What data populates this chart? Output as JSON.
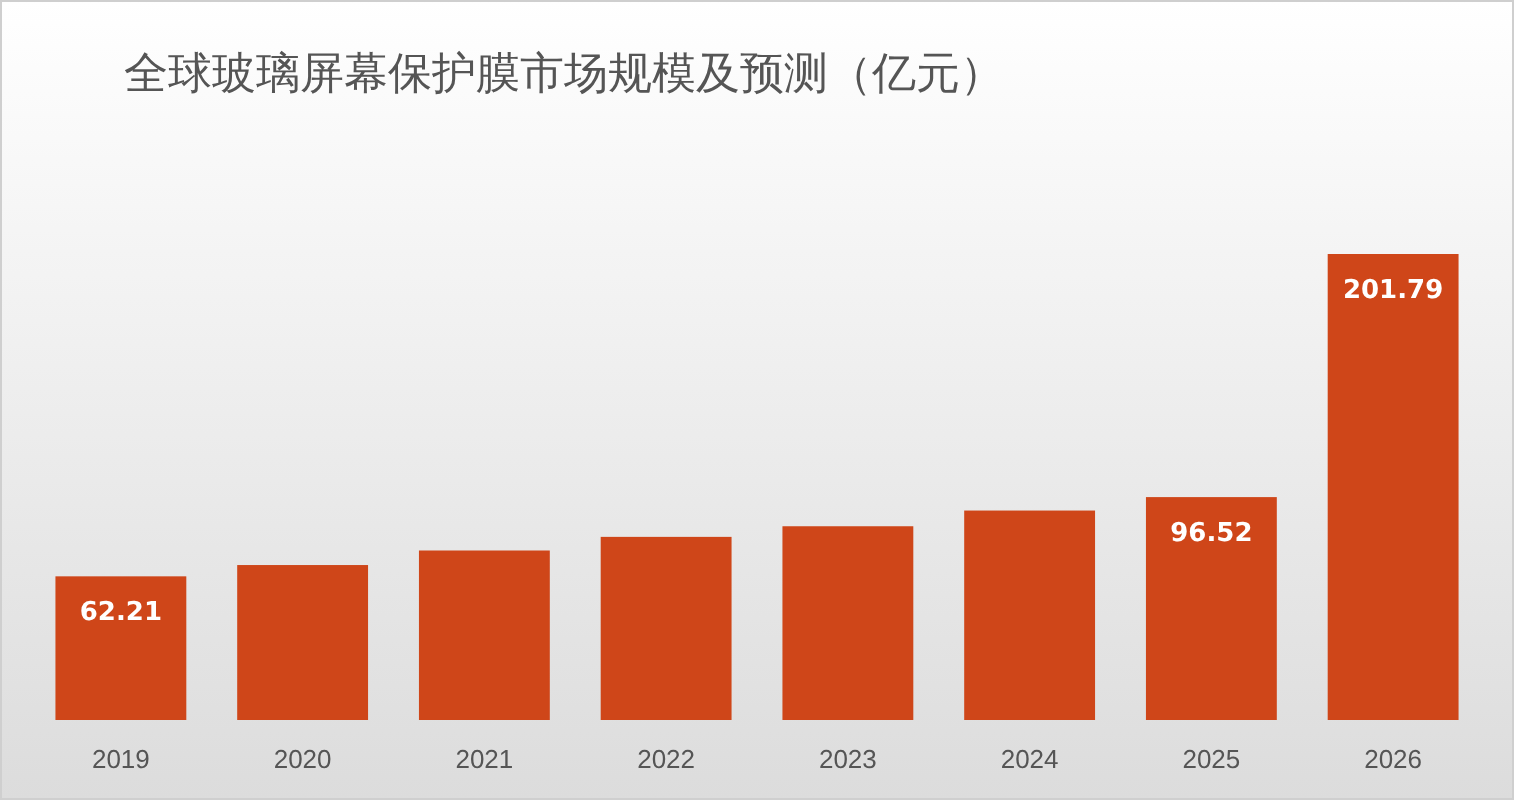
{
  "chart_data": {
    "type": "bar",
    "title": "全球玻璃屏幕保护膜市场规模及预测（亿元）",
    "categories": [
      "2019",
      "2020",
      "2021",
      "2022",
      "2023",
      "2024",
      "2025",
      "2026"
    ],
    "values": [
      62.21,
      67.1,
      73.4,
      79.3,
      83.9,
      90.7,
      96.52,
      201.79
    ],
    "value_labels": [
      "62.21",
      null,
      null,
      null,
      null,
      null,
      "96.52",
      "201.79"
    ],
    "color": "#cf4619"
  }
}
